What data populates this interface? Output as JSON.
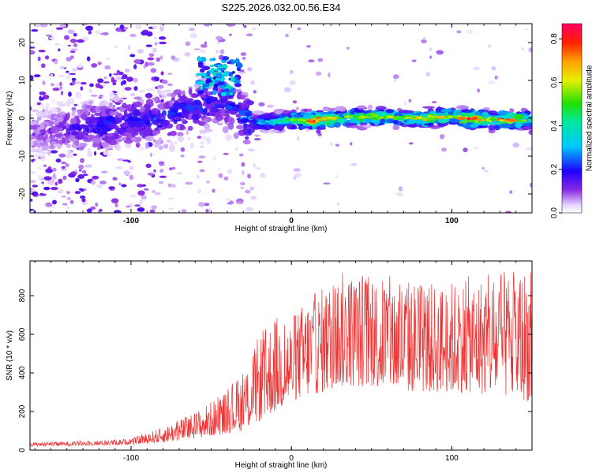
{
  "title": "S225.2026.032.00.56.E34",
  "chart_data": [
    {
      "type": "heatmap",
      "xlabel": "Height of straight line (km)",
      "ylabel": "Frequency (Hz)",
      "xlim": [
        -163,
        150
      ],
      "ylim": [
        -25,
        25
      ],
      "xticks": [
        {
          "v": -100,
          "label": "-100"
        },
        {
          "v": 0,
          "label": "0"
        },
        {
          "v": 100,
          "label": "100"
        }
      ],
      "yticks": [
        {
          "v": -20,
          "label": "-20"
        },
        {
          "v": -10,
          "label": "-10"
        },
        {
          "v": 0,
          "label": "0"
        },
        {
          "v": 10,
          "label": "10"
        },
        {
          "v": 20,
          "label": "20"
        }
      ],
      "colorbar": {
        "label": "Normalized spectral amplitude",
        "range": [
          0,
          0.87
        ],
        "ticks": [
          {
            "v": 0,
            "label": "0.0"
          },
          {
            "v": 0.2,
            "label": "0.2"
          },
          {
            "v": 0.4,
            "label": "0.4"
          },
          {
            "v": 0.6,
            "label": "0.6"
          },
          {
            "v": 0.8,
            "label": "0.8"
          }
        ]
      },
      "ridge": [
        [
          -163,
          -4,
          0.1
        ],
        [
          -140,
          -3,
          0.15
        ],
        [
          -120,
          -2,
          0.2
        ],
        [
          -100,
          -1,
          0.2
        ],
        [
          -80,
          0,
          0.22
        ],
        [
          -60,
          3,
          0.22
        ],
        [
          -45,
          4,
          0.2
        ],
        [
          -35,
          2,
          0.22
        ],
        [
          -25,
          -1,
          0.3
        ],
        [
          -10,
          -1,
          0.4
        ],
        [
          0,
          -0.5,
          0.5
        ],
        [
          15,
          -0.5,
          0.8
        ],
        [
          30,
          0,
          0.55
        ],
        [
          50,
          0.5,
          0.6
        ],
        [
          70,
          0,
          0.55
        ],
        [
          85,
          0,
          0.7
        ],
        [
          100,
          0.5,
          0.6
        ],
        [
          110,
          0,
          0.8
        ],
        [
          125,
          -0.5,
          0.55
        ],
        [
          133,
          -0.5,
          0.85
        ],
        [
          150,
          -0.5,
          0.45
        ]
      ]
    },
    {
      "type": "line",
      "xlabel": "Height of straight line (km)",
      "ylabel": "SNR (10 * v/v)",
      "xlim": [
        -163,
        150
      ],
      "ylim": [
        0,
        980
      ],
      "color": "#ee3333",
      "xticks": [
        {
          "v": -100,
          "label": "-100"
        },
        {
          "v": 0,
          "label": "0"
        },
        {
          "v": 100,
          "label": "100"
        }
      ],
      "yticks": [
        {
          "v": 0,
          "label": "0"
        },
        {
          "v": 200,
          "label": "200"
        },
        {
          "v": 400,
          "label": "400"
        },
        {
          "v": 600,
          "label": "600"
        },
        {
          "v": 800,
          "label": "800"
        }
      ],
      "envelope": [
        [
          -163,
          20,
          40
        ],
        [
          -120,
          25,
          50
        ],
        [
          -100,
          30,
          60
        ],
        [
          -80,
          40,
          120
        ],
        [
          -60,
          60,
          200
        ],
        [
          -45,
          80,
          280
        ],
        [
          -30,
          100,
          400
        ],
        [
          -20,
          150,
          600
        ],
        [
          -10,
          200,
          700
        ],
        [
          0,
          250,
          680
        ],
        [
          10,
          280,
          800
        ],
        [
          20,
          300,
          850
        ],
        [
          30,
          330,
          930
        ],
        [
          50,
          330,
          920
        ],
        [
          70,
          300,
          900
        ],
        [
          90,
          300,
          860
        ],
        [
          110,
          300,
          900
        ],
        [
          130,
          280,
          920
        ],
        [
          150,
          250,
          960
        ]
      ]
    }
  ]
}
